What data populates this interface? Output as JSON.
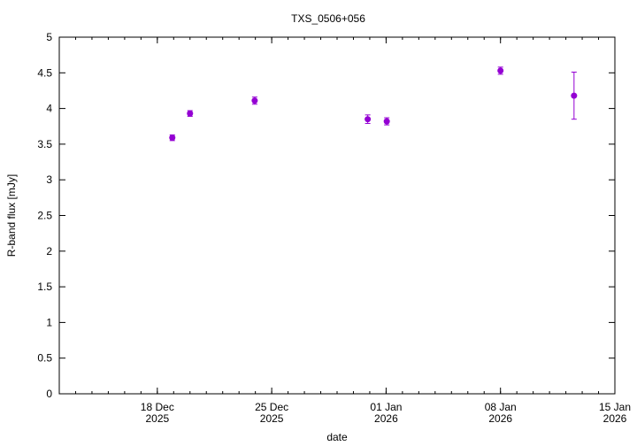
{
  "chart_data": {
    "type": "scatter",
    "title": "TXS_0506+056",
    "xlabel": "date",
    "ylabel": "R-band flux [mJy]",
    "ylim": [
      0,
      5
    ],
    "yticks": [
      "0",
      "0.5",
      "1",
      "1.5",
      "2",
      "2.5",
      "3",
      "3.5",
      "4",
      "4.5",
      "5"
    ],
    "xlim": [
      "2025-12-12",
      "2026-01-15"
    ],
    "xticks": [
      {
        "date": "2025-12-18",
        "label1": "18 Dec",
        "label2": "2025"
      },
      {
        "date": "2025-12-25",
        "label1": "25 Dec",
        "label2": "2025"
      },
      {
        "date": "2026-01-01",
        "label1": "01 Jan",
        "label2": "2026"
      },
      {
        "date": "2026-01-08",
        "label1": "08 Jan",
        "label2": "2026"
      },
      {
        "date": "2026-01-15",
        "label1": "15 Jan",
        "label2": "2026"
      }
    ],
    "grid": false,
    "color": "#9400d3",
    "points": [
      {
        "x": "2025-12-18T22:00",
        "y": 3.59,
        "err": 0.04
      },
      {
        "x": "2025-12-20T00:00",
        "y": 3.93,
        "err": 0.04
      },
      {
        "x": "2025-12-23T23:00",
        "y": 4.11,
        "err": 0.05
      },
      {
        "x": "2025-12-30T21:00",
        "y": 3.85,
        "err": 0.06
      },
      {
        "x": "2026-01-01T01:00",
        "y": 3.82,
        "err": 0.05
      },
      {
        "x": "2026-01-08T00:00",
        "y": 4.53,
        "err": 0.05
      },
      {
        "x": "2026-01-12T12:00",
        "y": 4.18,
        "err": 0.33
      }
    ]
  }
}
